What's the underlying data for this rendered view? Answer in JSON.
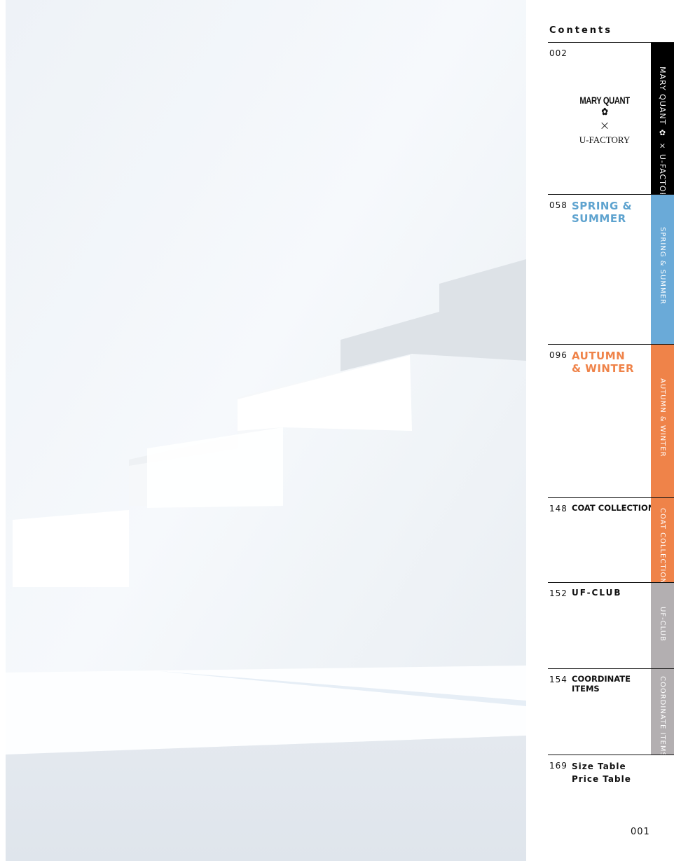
{
  "header": {
    "title": "Contents"
  },
  "colors": {
    "black": "#000000",
    "spring": "#6aaad8",
    "autumn": "#ef8349",
    "gray": "#b3afb1"
  },
  "entries": [
    {
      "page": "002",
      "logo": {
        "brand": "MARY QUANT",
        "times": "×",
        "partner": "U-FACTORY"
      },
      "tab": "MARY QUANT ✿ × U-FACTORY"
    },
    {
      "page": "058",
      "label": "SPRING & SUMMER",
      "tab": "SPRING & SUMMER"
    },
    {
      "page": "096",
      "label": "AUTUMN & WINTER",
      "tab": "AUTUMN & WINTER"
    },
    {
      "page": "148",
      "label": "COAT COLLECTION",
      "tab": "COAT COLLECTION"
    },
    {
      "page": "152",
      "label": "UF-CLUB",
      "tab": "UF-CLUB"
    },
    {
      "page": "154",
      "label": "COORDINATE ITEMS",
      "tab": "COORDINATE ITEMS"
    },
    {
      "page": "169",
      "label": "Size Table",
      "label2": "Price Table"
    }
  ],
  "footer": {
    "page_number": "001"
  }
}
